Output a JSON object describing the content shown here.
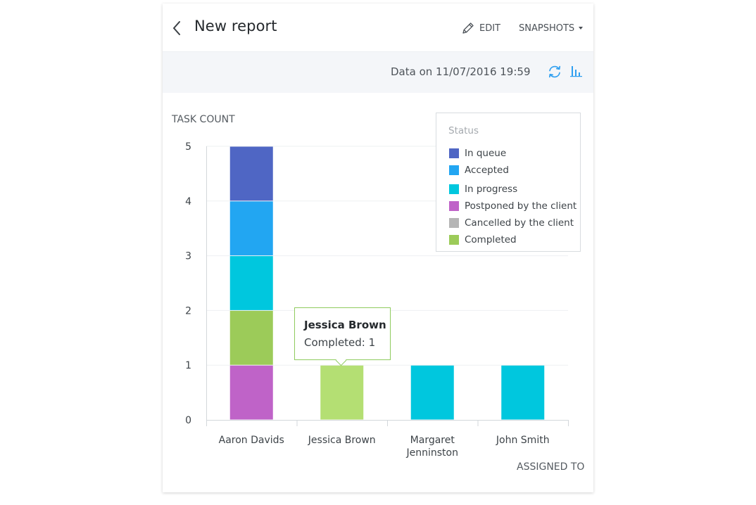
{
  "header": {
    "title": "New report",
    "edit_label": "EDIT",
    "snapshots_label": "SNAPSHOTS"
  },
  "toolbar": {
    "data_on": "Data on 11/07/2016 19:59"
  },
  "icons": {
    "back": "chevron-left-icon",
    "edit": "pencil-icon",
    "snapshots": "caret-down-icon",
    "refresh": "refresh-icon",
    "chart_type": "bar-chart-icon"
  },
  "chart_data": {
    "type": "bar",
    "stacked": true,
    "ylabel": "TASK COUNT",
    "xlabel": "ASSIGNED TO",
    "categories": [
      "Aaron Davids",
      "Jessica Brown",
      "Margaret Jenninston",
      "John Smith"
    ],
    "y_ticks": [
      0,
      1,
      2,
      3,
      4,
      5
    ],
    "ylim": [
      0,
      5
    ],
    "grid": true,
    "legend": {
      "title": "Status",
      "position": "top-right"
    },
    "series": [
      {
        "name": "Postponed by the client",
        "color": "#bf63c8",
        "values": [
          1,
          0,
          0,
          0
        ]
      },
      {
        "name": "Completed",
        "color": "#9ccb59",
        "values": [
          1,
          1,
          0,
          0
        ]
      },
      {
        "name": "In progress",
        "color": "#00c7de",
        "values": [
          1,
          0,
          1,
          1
        ]
      },
      {
        "name": "Accepted",
        "color": "#22a6f2",
        "values": [
          1,
          0,
          0,
          0
        ]
      },
      {
        "name": "In queue",
        "color": "#4f66c4",
        "values": [
          1,
          0,
          0,
          0
        ]
      },
      {
        "name": "Cancelled by the client",
        "color": "#b5b5b5",
        "values": [
          0,
          0,
          0,
          0
        ]
      }
    ],
    "legend_order": [
      "In queue",
      "Accepted",
      "In progress",
      "Postponed by the client",
      "Cancelled by the client",
      "Completed"
    ],
    "highlight": {
      "category": "Jessica Brown",
      "series": "Completed",
      "color": "#b4df73"
    },
    "tooltip": {
      "name": "Jessica Brown",
      "value_text": "Completed: 1"
    }
  }
}
